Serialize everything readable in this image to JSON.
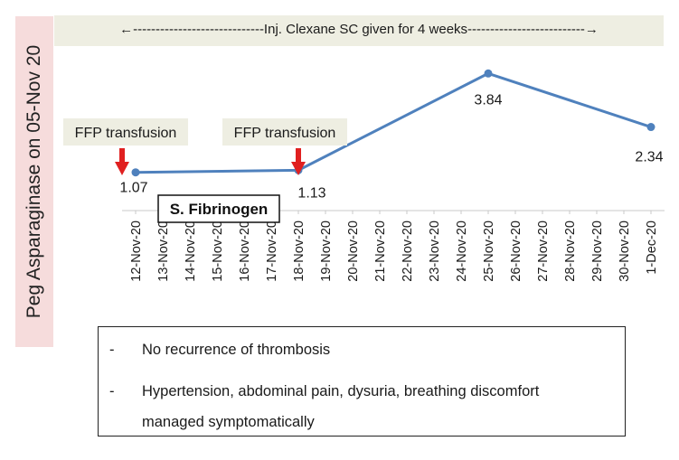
{
  "side_label": "Peg Asparaginase on 05-Nov 20",
  "top_banner": "←-----------------------------Inj. Clexane SC given for 4 weeks--------------------------→",
  "chart_data": {
    "type": "line",
    "categories": [
      "12-Nov-20",
      "13-Nov-20",
      "14-Nov-20",
      "15-Nov-20",
      "16-Nov-20",
      "17-Nov-20",
      "18-Nov-20",
      "19-Nov-20",
      "20-Nov-20",
      "21-Nov-20",
      "22-Nov-20",
      "23-Nov-20",
      "24-Nov-20",
      "25-Nov-20",
      "26-Nov-20",
      "27-Nov-20",
      "28-Nov-20",
      "29-Nov-20",
      "30-Nov-20",
      "1-Dec-20"
    ],
    "series": [
      {
        "name": "S. Fibrinogen",
        "points": [
          {
            "x": "12-Nov-20",
            "y": 1.07
          },
          {
            "x": "18-Nov-20",
            "y": 1.13
          },
          {
            "x": "25-Nov-20",
            "y": 3.84
          },
          {
            "x": "1-Dec-20",
            "y": 2.34
          }
        ],
        "labels": [
          "1.07",
          "1.13",
          "3.84",
          "2.34"
        ]
      }
    ],
    "ylim": [
      0,
      4.1
    ],
    "grid": false,
    "line_color": "#4f81bd",
    "annotations": [
      {
        "text": "FFP transfusion",
        "x": "12-Nov-20",
        "arrow_color": "#e02020"
      },
      {
        "text": "FFP transfusion",
        "x": "18-Nov-20",
        "arrow_color": "#e02020"
      }
    ]
  },
  "notes": [
    {
      "dash": "-",
      "text": "No recurrence of thrombosis"
    },
    {
      "dash": "-",
      "text": "Hypertension, abdominal pain, dysuria, breathing discomfort"
    },
    {
      "dash": "",
      "text": "managed symptomatically"
    }
  ],
  "colors": {
    "side_bg": "#f6dcdc",
    "top_bg": "#eeeee2",
    "annotation_bg": "#eeeee2"
  }
}
